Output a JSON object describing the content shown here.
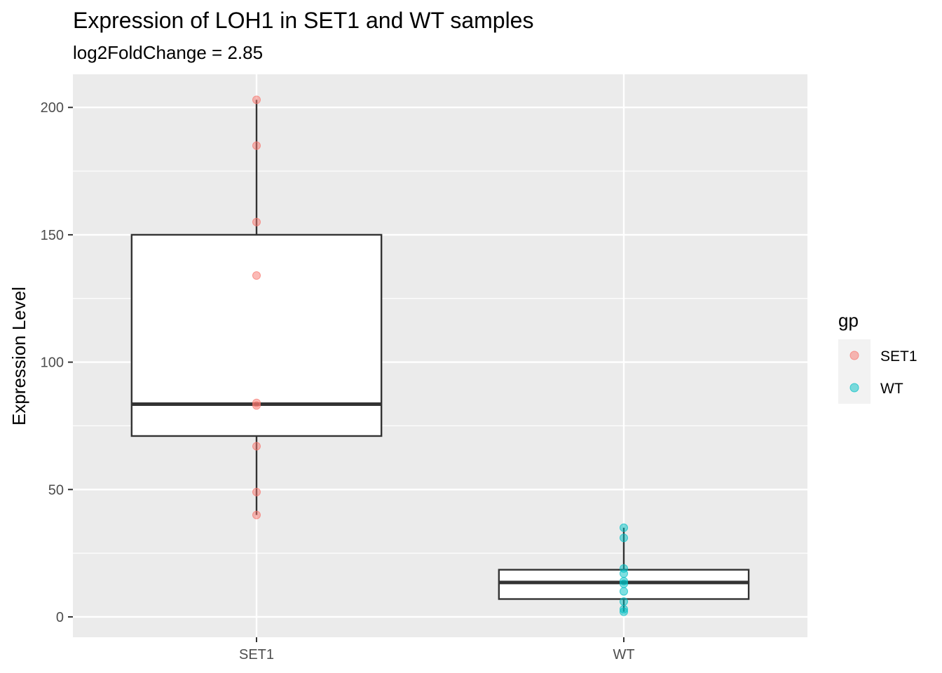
{
  "chart_data": {
    "type": "boxplot",
    "title": "Expression of LOH1 in SET1 and WT samples",
    "subtitle": "log2FoldChange = 2.85",
    "xlabel": "",
    "ylabel": "Expression Level",
    "ylim": [
      -8,
      213
    ],
    "y_ticks": [
      0,
      50,
      100,
      150,
      200
    ],
    "grid": true,
    "legend": {
      "title": "gp",
      "position": "right",
      "entries": [
        {
          "label": "SET1",
          "color": "#F8766D"
        },
        {
          "label": "WT",
          "color": "#00BFC4"
        }
      ]
    },
    "categories": [
      "SET1",
      "WT"
    ],
    "boxes": [
      {
        "category": "SET1",
        "color": "#F8766D",
        "whisker_low": 40,
        "q1": 71,
        "median": 83.5,
        "q3": 150,
        "whisker_high": 203,
        "points": [
          203,
          185,
          155,
          134,
          84,
          83,
          67,
          49,
          40
        ]
      },
      {
        "category": "WT",
        "color": "#00BFC4",
        "whisker_low": 2,
        "q1": 7,
        "median": 13.5,
        "q3": 18.5,
        "whisker_high": 35,
        "points": [
          35,
          31,
          19,
          17,
          14,
          13,
          10,
          6,
          3,
          2
        ]
      }
    ]
  }
}
